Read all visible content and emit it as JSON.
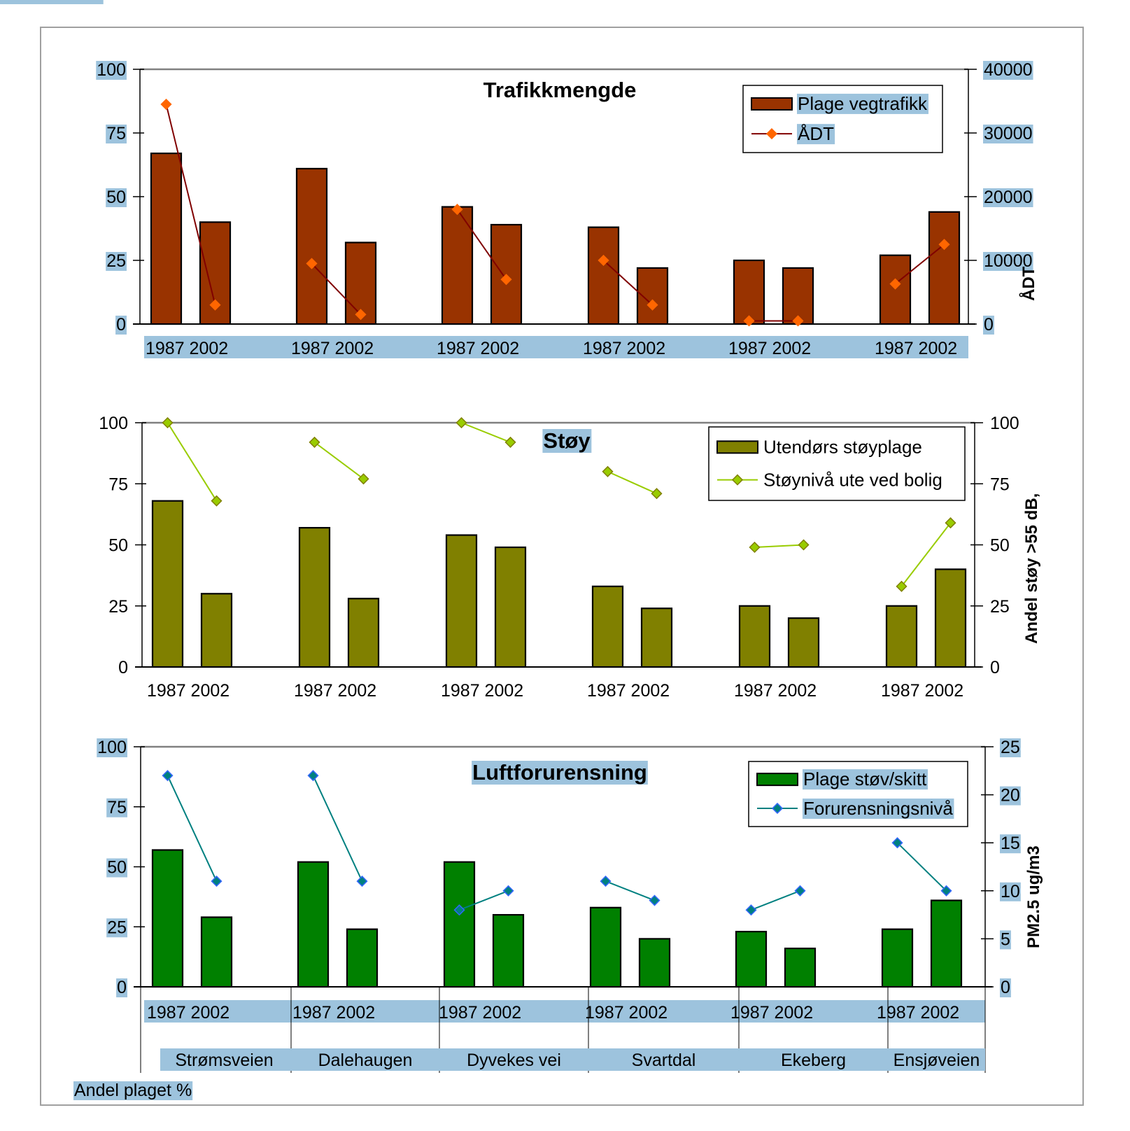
{
  "footer_label": "Andel plaget %",
  "locations": [
    "Strømsveien",
    "Dalehaugen",
    "Dyvekes vei",
    "Svartdal",
    "Ekeberg",
    "Ensjøveien"
  ],
  "chart_data": [
    {
      "type": "bar",
      "title": "Trafikkmengde",
      "categories": [
        "1987",
        "2002",
        "1987",
        "2002",
        "1987",
        "2002",
        "1987",
        "2002",
        "1987",
        "2002",
        "1987",
        "2002"
      ],
      "group_labels": [
        "1987 2002",
        "1987 2002",
        "1987 2002",
        "1987 2002",
        "1987 2002",
        "1987 2002"
      ],
      "ylim": [
        0,
        100
      ],
      "yticks": [
        "0",
        "25",
        "50",
        "75",
        "100"
      ],
      "y2lim": [
        0,
        40000
      ],
      "y2ticks": [
        "0",
        "10000",
        "20000",
        "30000",
        "40000"
      ],
      "y2label": "ÅDT",
      "legend_position": "top-right",
      "series": [
        {
          "name": "Plage vegtrafikk",
          "kind": "bar",
          "axis": "left",
          "color": "#993300",
          "values": [
            67,
            40,
            61,
            32,
            46,
            39,
            38,
            22,
            25,
            22,
            27,
            44
          ]
        },
        {
          "name": "ÅDT",
          "kind": "line",
          "axis": "right",
          "color": "#800000",
          "marker_color": "#ff6600",
          "values": [
            34500,
            3000,
            9500,
            1500,
            18000,
            7000,
            10000,
            3000,
            500,
            500,
            6300,
            12500
          ]
        }
      ]
    },
    {
      "type": "bar",
      "title": "Støy",
      "categories": [
        "1987",
        "2002",
        "1987",
        "2002",
        "1987",
        "2002",
        "1987",
        "2002",
        "1987",
        "2002",
        "1987",
        "2002"
      ],
      "group_labels": [
        "1987 2002",
        "1987 2002",
        "1987 2002",
        "1987 2002",
        "1987 2002",
        "1987 2002"
      ],
      "ylim": [
        0,
        100
      ],
      "yticks": [
        "0",
        "25",
        "50",
        "75",
        "100"
      ],
      "y2lim": [
        0,
        100
      ],
      "y2ticks": [
        "0",
        "25",
        "50",
        "75",
        "100"
      ],
      "y2label": "Andel støy >55 dB,",
      "legend_position": "top-right",
      "series": [
        {
          "name": "Utendørs støyplage",
          "kind": "bar",
          "axis": "left",
          "color": "#808000",
          "values": [
            68,
            30,
            57,
            28,
            54,
            49,
            33,
            24,
            25,
            20,
            25,
            40
          ]
        },
        {
          "name": "Støynivå ute ved bolig",
          "kind": "line",
          "axis": "right",
          "color": "#99cc00",
          "marker_color": "#99cc00",
          "values": [
            100,
            68,
            92,
            77,
            100,
            92,
            80,
            71,
            49,
            50,
            33,
            59
          ]
        }
      ]
    },
    {
      "type": "bar",
      "title": "Luftforurensning",
      "categories": [
        "1987",
        "2002",
        "1987",
        "2002",
        "1987",
        "2002",
        "1987",
        "2002",
        "1987",
        "2002",
        "1987",
        "2002"
      ],
      "group_labels": [
        "1987 2002",
        "1987 2002",
        "1987 2002",
        "1987 2002",
        "1987 2002",
        "1987 2002"
      ],
      "ylim": [
        0,
        100
      ],
      "yticks": [
        "0",
        "25",
        "50",
        "75",
        "100"
      ],
      "y2lim": [
        0,
        25
      ],
      "y2ticks": [
        "0",
        "5",
        "10",
        "15",
        "20",
        "25"
      ],
      "y2label": "PM2.5 ug/m3",
      "legend_position": "top-right",
      "series": [
        {
          "name": "Plage støv/skitt",
          "kind": "bar",
          "axis": "left",
          "color": "#008000",
          "values": [
            57,
            29,
            52,
            24,
            52,
            30,
            33,
            20,
            23,
            16,
            24,
            36
          ]
        },
        {
          "name": "Forurensningsnivå",
          "kind": "line",
          "axis": "right",
          "color": "#008080",
          "marker_color": "#3366ff",
          "values": [
            22,
            11,
            22,
            11,
            8,
            10,
            11,
            9,
            8,
            10,
            15,
            10
          ]
        }
      ]
    }
  ]
}
